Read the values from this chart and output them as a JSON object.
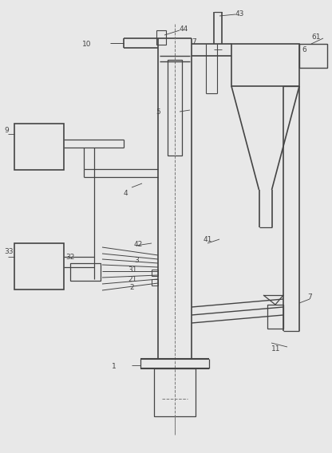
{
  "fig_width": 4.16,
  "fig_height": 5.68,
  "dpi": 100,
  "bg_color": "#e8e8e8",
  "line_color": "#444444",
  "lw": 0.9
}
